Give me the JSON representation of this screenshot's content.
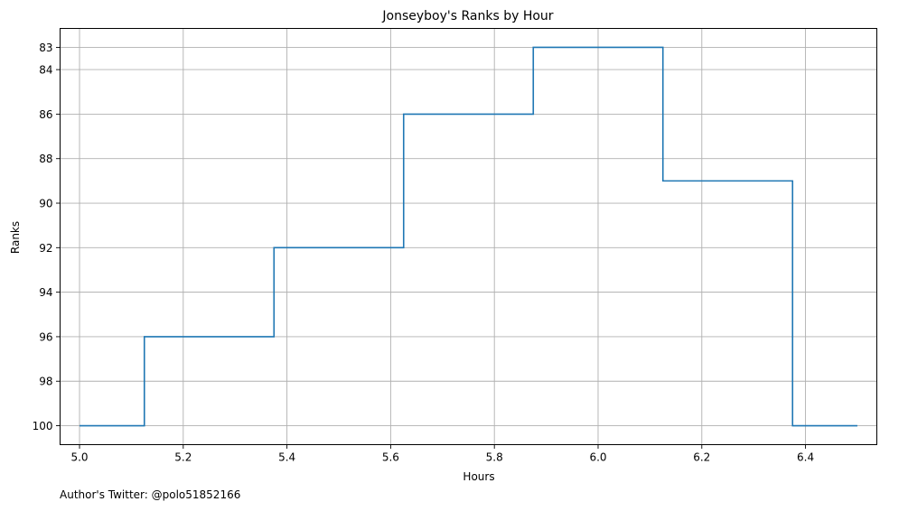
{
  "chart_data": {
    "type": "line",
    "drawstyle": "steps-mid",
    "title": "Jonseyboy's Ranks by Hour",
    "xlabel": "Hours",
    "ylabel": "Ranks",
    "xlim": [
      4.9625,
      6.5375
    ],
    "ylim": [
      100.85,
      82.15
    ],
    "y_inverted": true,
    "grid": true,
    "xticks": [
      "5.0",
      "5.2",
      "5.4",
      "5.6",
      "5.8",
      "6.0",
      "6.2",
      "6.4"
    ],
    "yticks": [
      "83",
      "84",
      "86",
      "88",
      "90",
      "92",
      "94",
      "96",
      "98",
      "100"
    ],
    "series": [
      {
        "color": "#1f77b4",
        "x": [
          5.0,
          5.25,
          5.5,
          5.75,
          6.0,
          6.25,
          6.5
        ],
        "y": [
          100,
          96,
          92,
          86,
          83,
          89,
          100
        ]
      }
    ]
  },
  "footnote": "Author's Twitter: @polo51852166"
}
